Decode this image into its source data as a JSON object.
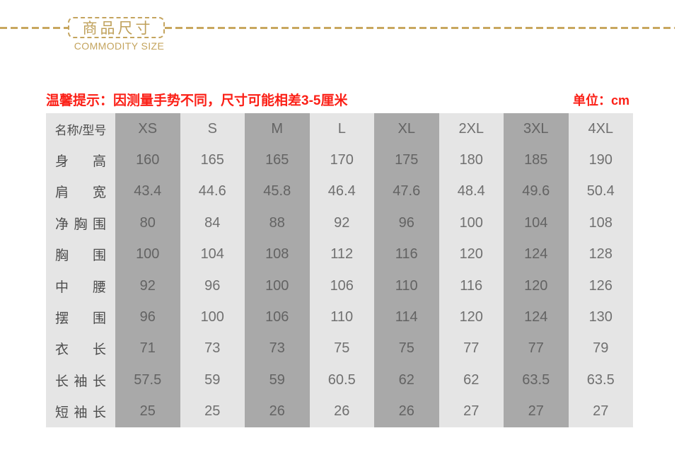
{
  "banner": {
    "accent_color": "#c4a45e"
  },
  "notice": {
    "tip": "温馨提示：因测量手势不同，尺寸可能相差3-5厘米",
    "unit": "单位：cm",
    "color": "#fb1f16"
  },
  "colors": {
    "column_stripe_dark": "#a9a9a9",
    "column_stripe_light": "#e5e5e5",
    "label_text": "#4d4d4d",
    "value_text": "#707070"
  },
  "chart_data": {
    "type": "table",
    "title": "商品尺寸",
    "subtitle": "COMMODITY SIZE",
    "unit": "cm",
    "columns": [
      "名称/型号",
      "XS",
      "S",
      "M",
      "L",
      "XL",
      "2XL",
      "3XL",
      "4XL"
    ],
    "rows": [
      {
        "label": "身高",
        "values": [
          "160",
          "165",
          "165",
          "170",
          "175",
          "180",
          "185",
          "190"
        ]
      },
      {
        "label": "肩宽",
        "values": [
          "43.4",
          "44.6",
          "45.8",
          "46.4",
          "47.6",
          "48.4",
          "49.6",
          "50.4"
        ]
      },
      {
        "label": "净胸围",
        "values": [
          "80",
          "84",
          "88",
          "92",
          "96",
          "100",
          "104",
          "108"
        ]
      },
      {
        "label": "胸围",
        "values": [
          "100",
          "104",
          "108",
          "112",
          "116",
          "120",
          "124",
          "128"
        ]
      },
      {
        "label": "中腰",
        "values": [
          "92",
          "96",
          "100",
          "106",
          "110",
          "116",
          "120",
          "126"
        ]
      },
      {
        "label": "摆围",
        "values": [
          "96",
          "100",
          "106",
          "110",
          "114",
          "120",
          "124",
          "130"
        ]
      },
      {
        "label": "衣长",
        "values": [
          "71",
          "73",
          "73",
          "75",
          "75",
          "77",
          "77",
          "79"
        ]
      },
      {
        "label": "长袖长",
        "values": [
          "57.5",
          "59",
          "59",
          "60.5",
          "62",
          "62",
          "63.5",
          "63.5"
        ]
      },
      {
        "label": "短袖长",
        "values": [
          "25",
          "25",
          "26",
          "26",
          "26",
          "27",
          "27",
          "27"
        ]
      }
    ]
  }
}
